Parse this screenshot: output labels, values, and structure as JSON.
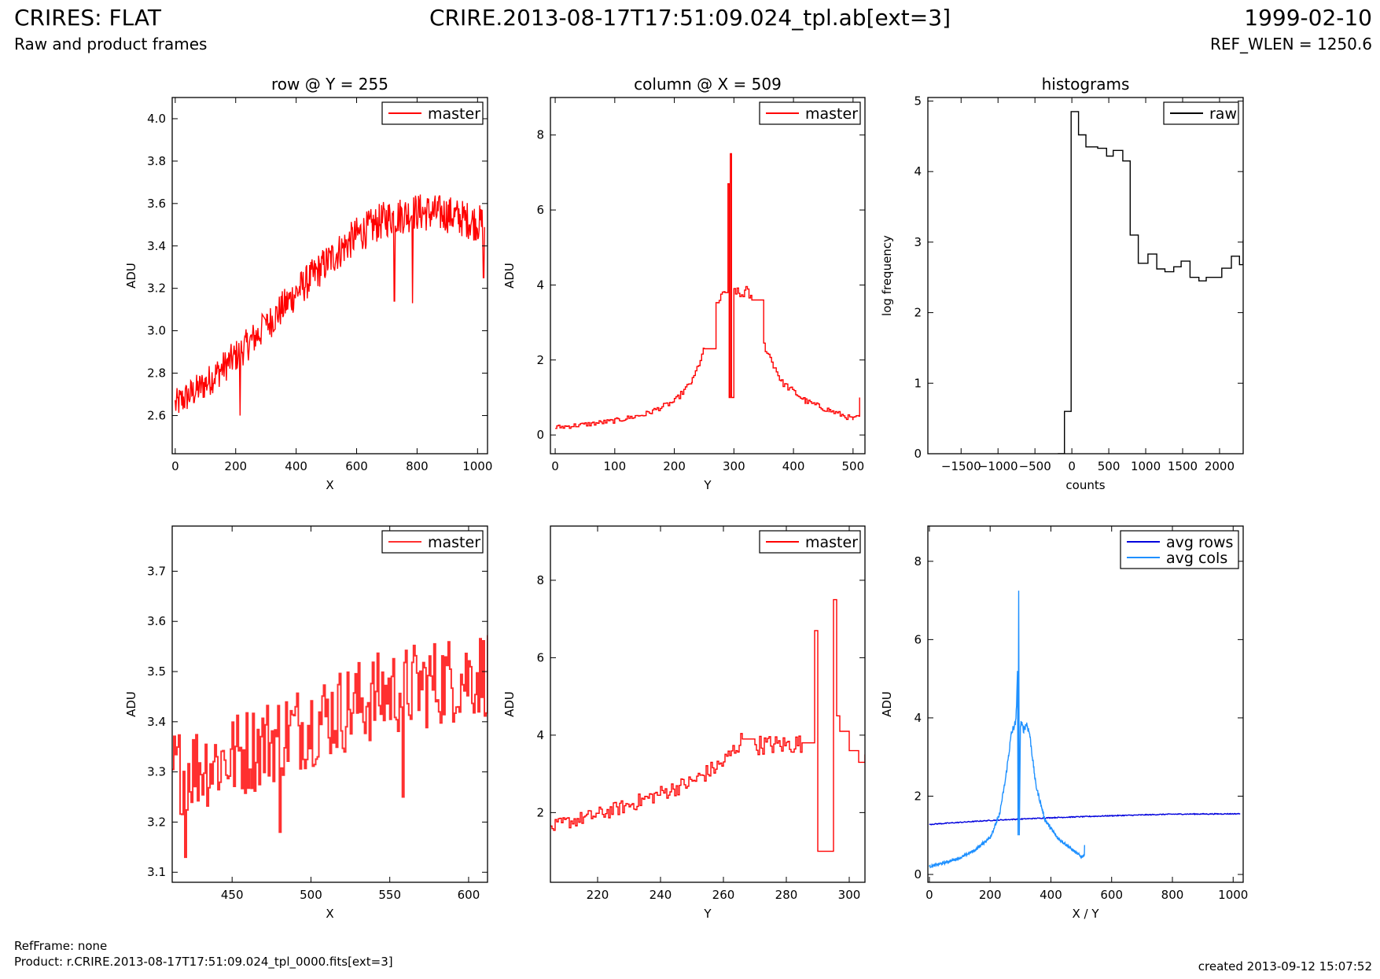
{
  "header": {
    "title": "CRIRES: FLAT",
    "subtitle": "Raw and product frames",
    "center_title": "CRIRE.2013-08-17T17:51:09.024_tpl.ab[ext=3]",
    "date": "1999-02-10",
    "ref_wlen": "REF_WLEN = 1250.6"
  },
  "footer": {
    "ref_frame": "RefFrame: none",
    "product": "Product: r.CRIRE.2013-08-17T17:51:09.024_tpl_0000.fits[ext=3]",
    "created": "created 2013-09-12 15:07:52"
  },
  "colors": {
    "red": "#ff0000",
    "black": "#000000",
    "blue": "#0000dd",
    "lightblue": "#1e90ff"
  },
  "chart_data": [
    {
      "type": "line",
      "title": "row @ Y = 255",
      "xlabel": "X",
      "ylabel": "ADU",
      "xlim": [
        -10,
        1033
      ],
      "ylim": [
        2.42,
        4.1
      ],
      "xticks": [
        0,
        200,
        400,
        600,
        800,
        1000
      ],
      "yticks": [
        2.6,
        2.8,
        3.0,
        3.2,
        3.4,
        3.6,
        3.8,
        4.0
      ],
      "ytick_labels": [
        "2.6",
        "2.8",
        "3.0",
        "3.2",
        "3.4",
        "3.6",
        "3.8",
        "4.0"
      ],
      "legend": "top-right",
      "series": [
        {
          "name": "master",
          "color": "#ff0000",
          "style": "noisy",
          "x": [
            0,
            100,
            200,
            300,
            400,
            500,
            600,
            700,
            800,
            900,
            1023
          ],
          "y": [
            2.65,
            2.75,
            2.88,
            3.02,
            3.18,
            3.32,
            3.45,
            3.53,
            3.56,
            3.55,
            3.5
          ],
          "noise": 0.07,
          "spikes": [
            {
              "x": 215,
              "y": 2.6
            },
            {
              "x": 725,
              "y": 3.14
            },
            {
              "x": 785,
              "y": 3.13
            },
            {
              "x": 1020,
              "y": 3.25
            }
          ]
        }
      ]
    },
    {
      "type": "line",
      "title": "column @ X = 509",
      "xlabel": "Y",
      "ylabel": "ADU",
      "xlim": [
        -8,
        520
      ],
      "ylim": [
        -0.5,
        9.0
      ],
      "xticks": [
        0,
        100,
        200,
        300,
        400,
        500
      ],
      "yticks": [
        0,
        2,
        4,
        6,
        8
      ],
      "ytick_labels": [
        "0",
        "2",
        "4",
        "6",
        "8"
      ],
      "legend": "top-right",
      "series": [
        {
          "name": "master",
          "color": "#ff0000",
          "style": "step",
          "x": [
            0,
            50,
            100,
            150,
            200,
            230,
            250,
            270,
            285,
            290,
            292,
            294,
            296,
            300,
            310,
            320,
            330,
            350,
            380,
            420,
            460,
            500,
            510,
            511
          ],
          "y": [
            0.2,
            0.28,
            0.38,
            0.55,
            0.9,
            1.45,
            2.3,
            3.5,
            3.8,
            6.7,
            1.0,
            7.5,
            1.0,
            3.9,
            3.7,
            3.85,
            3.6,
            2.4,
            1.4,
            0.9,
            0.65,
            0.42,
            0.5,
            1.0
          ],
          "noise": 0.06
        }
      ]
    },
    {
      "type": "line",
      "title": "histograms",
      "xlabel": "counts",
      "ylabel": "log frequency",
      "xlim": [
        -1950,
        2320
      ],
      "ylim": [
        0,
        5.05
      ],
      "xticks": [
        -1500,
        -1000,
        -500,
        0,
        500,
        1000,
        1500,
        2000
      ],
      "xtick_labels": [
        "−1500",
        "−1000",
        "−500",
        "0",
        "500",
        "1000",
        "1500",
        "2000"
      ],
      "yticks": [
        0,
        1,
        2,
        3,
        4,
        5
      ],
      "ytick_labels": [
        "0",
        "1",
        "2",
        "3",
        "4",
        "5"
      ],
      "legend": "top-right",
      "series": [
        {
          "name": "raw",
          "color": "#000000",
          "style": "step",
          "x": [
            -190,
            -100,
            -10,
            90,
            190,
            350,
            470,
            560,
            690,
            790,
            900,
            1030,
            1150,
            1260,
            1380,
            1480,
            1600,
            1720,
            1820,
            2030,
            2160,
            2270,
            2320
          ],
          "y": [
            0.0,
            0.6,
            4.85,
            4.52,
            4.35,
            4.33,
            4.22,
            4.3,
            4.15,
            3.1,
            2.7,
            2.83,
            2.62,
            2.58,
            2.65,
            2.73,
            2.5,
            2.45,
            2.5,
            2.63,
            2.8,
            2.68,
            3.03
          ]
        }
      ]
    },
    {
      "type": "line",
      "title": "",
      "xlabel": "X",
      "ylabel": "ADU",
      "xlim": [
        412,
        612
      ],
      "ylim": [
        3.08,
        3.79
      ],
      "xticks": [
        450,
        500,
        550,
        600
      ],
      "yticks": [
        3.1,
        3.2,
        3.3,
        3.4,
        3.5,
        3.6,
        3.7
      ],
      "ytick_labels": [
        "3.1",
        "3.2",
        "3.3",
        "3.4",
        "3.5",
        "3.6",
        "3.7"
      ],
      "legend": "top-right",
      "series": [
        {
          "name": "master",
          "color": "#ff3030",
          "style": "step_noisy",
          "x": [
            412,
            450,
            500,
            550,
            612
          ],
          "y": [
            3.3,
            3.33,
            3.4,
            3.46,
            3.5
          ],
          "noise": 0.09,
          "spikes": [
            {
              "x": 420,
              "y": 3.13
            },
            {
              "x": 480,
              "y": 3.18
            },
            {
              "x": 558,
              "y": 3.25
            }
          ]
        }
      ]
    },
    {
      "type": "line",
      "title": "",
      "xlabel": "Y",
      "ylabel": "ADU",
      "xlim": [
        205,
        305
      ],
      "ylim": [
        0.2,
        9.4
      ],
      "xticks": [
        220,
        240,
        260,
        280,
        300
      ],
      "yticks": [
        2,
        4,
        6,
        8
      ],
      "ytick_labels": [
        "2",
        "4",
        "6",
        "8"
      ],
      "legend": "top-right",
      "series": [
        {
          "name": "master",
          "color": "#ff0000",
          "style": "step",
          "x": [
            205,
            210,
            220,
            230,
            240,
            250,
            260,
            266,
            270,
            280,
            285,
            289,
            290,
            292,
            295,
            296,
            297,
            300,
            303,
            305
          ],
          "y": [
            1.6,
            1.75,
            1.95,
            2.2,
            2.5,
            2.8,
            3.3,
            3.9,
            3.75,
            3.75,
            3.8,
            6.7,
            1.0,
            1.0,
            7.5,
            4.5,
            4.1,
            3.6,
            3.3,
            3.5
          ],
          "noise": 0.12
        }
      ]
    },
    {
      "type": "line",
      "title": "",
      "xlabel": "X / Y",
      "ylabel": "ADU",
      "xlim": [
        -5,
        1033
      ],
      "ylim": [
        -0.2,
        8.9
      ],
      "xticks": [
        0,
        200,
        400,
        600,
        800,
        1000
      ],
      "yticks": [
        0,
        2,
        4,
        6,
        8
      ],
      "ytick_labels": [
        "0",
        "2",
        "4",
        "6",
        "8"
      ],
      "legend": "top-right",
      "series": [
        {
          "name": "avg rows",
          "color": "#0000dd",
          "style": "noisy",
          "x": [
            0,
            200,
            400,
            600,
            800,
            1023
          ],
          "y": [
            1.28,
            1.38,
            1.45,
            1.5,
            1.54,
            1.55
          ],
          "noise": 0.012
        },
        {
          "name": "avg cols",
          "color": "#1e90ff",
          "style": "noisy",
          "x": [
            0,
            50,
            100,
            150,
            200,
            230,
            250,
            270,
            285,
            290,
            292,
            294,
            296,
            300,
            310,
            320,
            330,
            350,
            380,
            420,
            460,
            500,
            510,
            511
          ],
          "y": [
            0.2,
            0.3,
            0.42,
            0.62,
            0.95,
            1.5,
            2.4,
            3.6,
            3.9,
            5.2,
            1.0,
            7.25,
            1.0,
            3.9,
            3.7,
            3.85,
            3.6,
            2.3,
            1.4,
            0.95,
            0.7,
            0.45,
            0.5,
            0.75
          ],
          "noise": 0.07
        }
      ]
    }
  ]
}
